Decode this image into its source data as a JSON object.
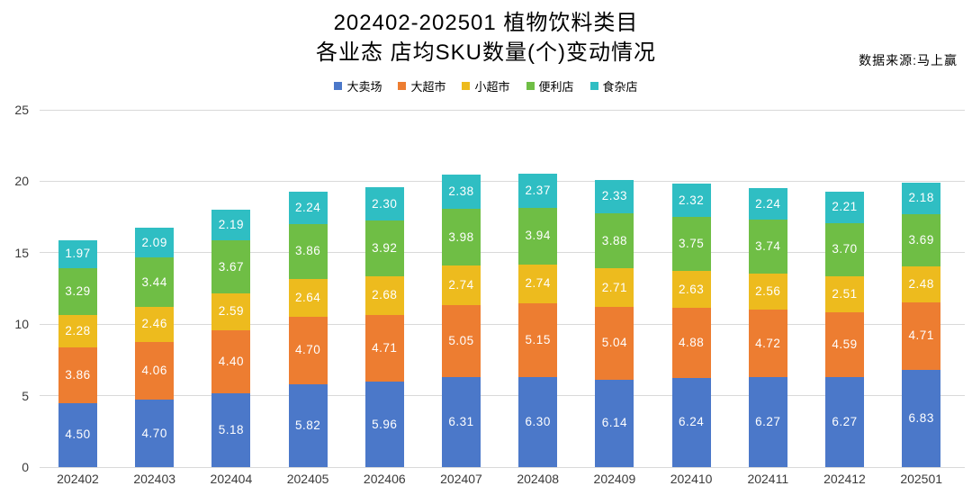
{
  "title": {
    "line1": "202402-202501 植物饮料类目",
    "line2": "各业态 店均SKU数量(个)变动情况"
  },
  "source": "数据来源:马上赢",
  "chart_data": {
    "type": "bar",
    "stacked": true,
    "title": "202402-202501 植物饮料类目 各业态 店均SKU数量(个)变动情况",
    "xlabel": "",
    "ylabel": "",
    "ylim": [
      0,
      25
    ],
    "yticks": [
      0,
      5,
      10,
      15,
      20,
      25
    ],
    "grid": true,
    "legend_position": "top",
    "data_labels": true,
    "categories": [
      "202402",
      "202403",
      "202404",
      "202405",
      "202406",
      "202407",
      "202408",
      "202409",
      "202410",
      "202411",
      "202412",
      "202501"
    ],
    "series": [
      {
        "name": "大卖场",
        "color": "#4B78C9",
        "values": [
          4.5,
          4.7,
          5.18,
          5.82,
          5.96,
          6.31,
          6.3,
          6.14,
          6.24,
          6.27,
          6.27,
          6.83
        ]
      },
      {
        "name": "大超市",
        "color": "#ED7D31",
        "values": [
          3.86,
          4.06,
          4.4,
          4.7,
          4.71,
          5.05,
          5.15,
          5.04,
          4.88,
          4.72,
          4.59,
          4.71
        ]
      },
      {
        "name": "小超市",
        "color": "#EDBB1E",
        "values": [
          2.28,
          2.46,
          2.59,
          2.64,
          2.68,
          2.74,
          2.74,
          2.71,
          2.63,
          2.56,
          2.51,
          2.48
        ]
      },
      {
        "name": "便利店",
        "color": "#6FBE45",
        "values": [
          3.29,
          3.44,
          3.67,
          3.86,
          3.92,
          3.98,
          3.94,
          3.88,
          3.75,
          3.74,
          3.7,
          3.69
        ]
      },
      {
        "name": "食杂店",
        "color": "#2FBEC3",
        "values": [
          1.97,
          2.09,
          2.19,
          2.24,
          2.3,
          2.38,
          2.37,
          2.33,
          2.32,
          2.24,
          2.21,
          2.18
        ]
      }
    ]
  }
}
